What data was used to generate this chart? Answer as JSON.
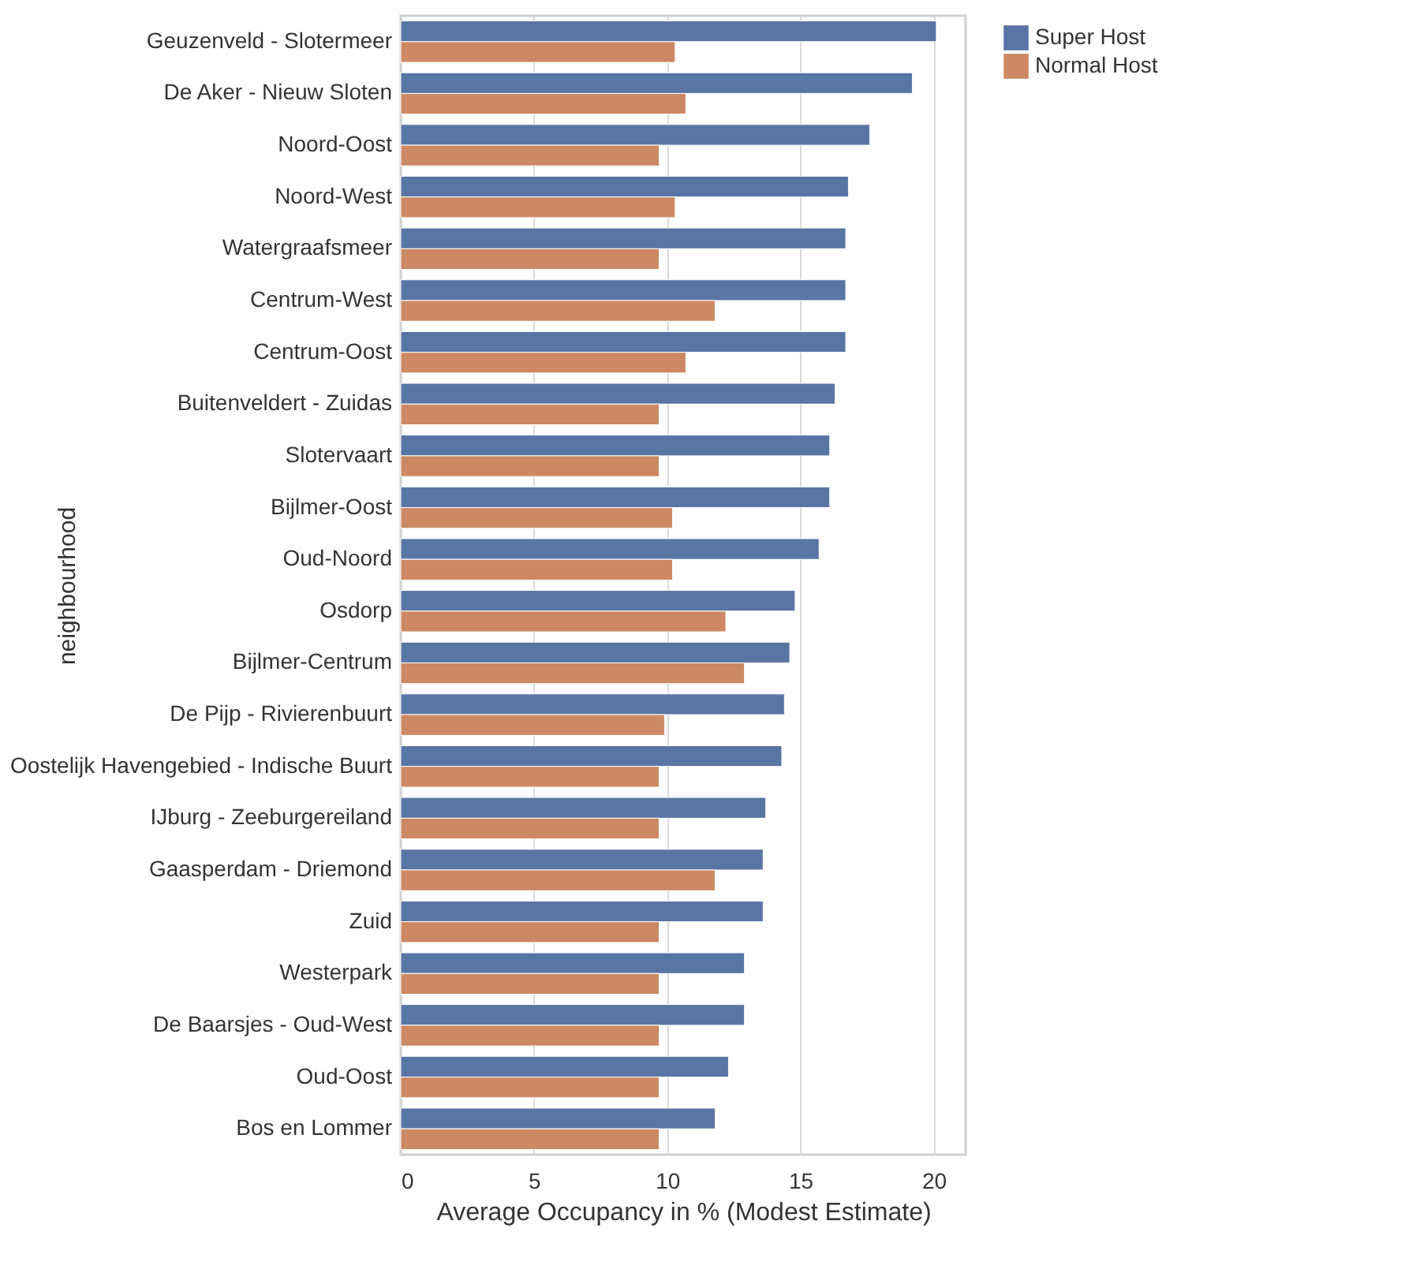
{
  "chart_data": {
    "type": "bar",
    "orientation": "horizontal",
    "xlabel": "Average Occupancy in % (Modest Estimate)",
    "ylabel": "neighbourhood",
    "categories": [
      "Geuzenveld - Slotermeer",
      "De Aker - Nieuw Sloten",
      "Noord-Oost",
      "Noord-West",
      "Watergraafsmeer",
      "Centrum-West",
      "Centrum-Oost",
      "Buitenveldert - Zuidas",
      "Slotervaart",
      "Bijlmer-Oost",
      "Oud-Noord",
      "Osdorp",
      "Bijlmer-Centrum",
      "De Pijp - Rivierenbuurt",
      "Oostelijk Havengebied - Indische Buurt",
      "IJburg - Zeeburgereiland",
      "Gaasperdam - Driemond",
      "Zuid",
      "Westerpark",
      "De Baarsjes - Oud-West",
      "Oud-Oost",
      "Bos en Lommer"
    ],
    "series": [
      {
        "name": "Super Host",
        "color": "#5975a4",
        "values": [
          20.1,
          19.2,
          17.6,
          16.8,
          16.7,
          16.7,
          16.7,
          16.3,
          16.1,
          16.1,
          15.7,
          14.8,
          14.6,
          14.4,
          14.3,
          13.7,
          13.6,
          13.6,
          12.9,
          12.9,
          12.3,
          11.8
        ]
      },
      {
        "name": "Normal Host",
        "color": "#cc8963",
        "values": [
          10.3,
          10.7,
          9.7,
          10.3,
          9.7,
          11.8,
          10.7,
          9.7,
          9.7,
          10.2,
          10.2,
          12.2,
          12.9,
          9.9,
          9.7,
          9.7,
          11.8,
          9.7,
          9.7,
          9.7,
          9.7,
          9.7
        ]
      }
    ],
    "xlim": [
      0,
      21.2
    ],
    "xticks": [
      0,
      5,
      10,
      15,
      20
    ],
    "grid": "x",
    "legend": "top right"
  }
}
